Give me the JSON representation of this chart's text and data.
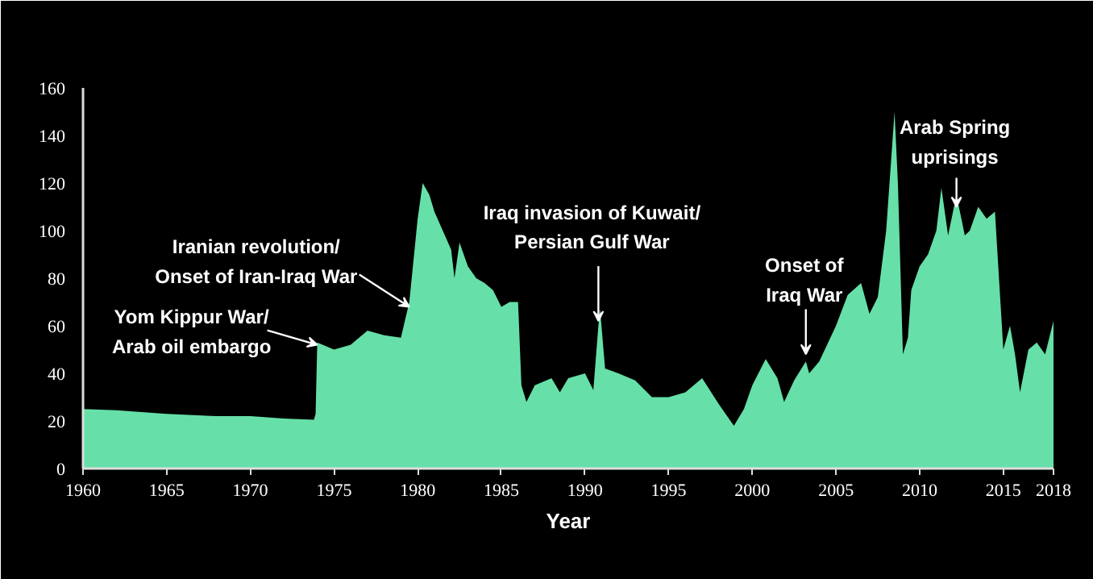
{
  "chart_data": {
    "type": "area",
    "xlabel": "Year",
    "color": "#66e0a8",
    "grid": false,
    "x": [
      1960,
      1962,
      1965,
      1968,
      1970,
      1972,
      1973.8,
      1973.9,
      1974.0,
      1975,
      1976,
      1977,
      1978,
      1979,
      1979.5,
      1980,
      1980.3,
      1980.7,
      1981,
      1981.5,
      1982,
      1982.2,
      1982.5,
      1983,
      1983.5,
      1984,
      1984.5,
      1985,
      1985.5,
      1986,
      1986.2,
      1986.5,
      1987,
      1988,
      1988.5,
      1989,
      1990,
      1990.5,
      1990.8,
      1990.9,
      1991.2,
      1992,
      1993,
      1994,
      1995,
      1996,
      1997,
      1998,
      1998.9,
      1999.5,
      2000,
      2000.8,
      2001.5,
      2001.9,
      2002.5,
      2003.2,
      2003.4,
      2004,
      2005,
      2005.7,
      2006.5,
      2007,
      2007.5,
      2008,
      2008.5,
      2008.7,
      2009,
      2009.3,
      2009.5,
      2010,
      2010.5,
      2011,
      2011.3,
      2011.7,
      2012.2,
      2012.7,
      2013,
      2013.5,
      2014,
      2014.5,
      2015,
      2015.4,
      2015.7,
      2016,
      2016.5,
      2017,
      2017.5,
      2018
    ],
    "values": [
      25,
      24.5,
      23,
      22,
      22,
      21,
      20.5,
      23,
      53,
      50,
      52,
      58,
      56,
      55,
      70,
      105,
      120,
      115,
      108,
      100,
      92,
      80,
      95,
      85,
      80,
      78,
      75,
      68,
      70,
      70,
      35,
      28,
      35,
      38,
      32,
      38,
      40,
      33,
      60,
      67,
      42,
      40,
      37,
      30,
      30,
      32,
      38,
      27,
      18,
      25,
      35,
      46,
      38,
      28,
      37,
      45,
      40,
      45,
      60,
      73,
      78,
      65,
      72,
      100,
      150,
      120,
      48,
      55,
      75,
      85,
      90,
      100,
      118,
      98,
      115,
      98,
      100,
      110,
      105,
      108,
      50,
      60,
      48,
      32,
      50,
      53,
      48,
      62
    ],
    "xlim": [
      1960,
      2018
    ],
    "xticks": [
      1960,
      1965,
      1970,
      1975,
      1980,
      1985,
      1990,
      1995,
      2000,
      2005,
      2010,
      2015,
      2018
    ],
    "ylim": [
      0,
      160
    ],
    "yticks": [
      0,
      20,
      40,
      60,
      80,
      100,
      120,
      140,
      160
    ],
    "annotations": [
      {
        "text": "Yom Kippur War/\nArab oil embargo",
        "x": 1974,
        "y": 52
      },
      {
        "text": "Iranian revolution/\nOnset of Iran-Iraq War",
        "x": 1979.5,
        "y": 68
      },
      {
        "text": "Iraq invasion of Kuwait/\nPersian Gulf War",
        "x": 1990.8,
        "y": 62
      },
      {
        "text": "Onset of\nIraq War",
        "x": 2003.2,
        "y": 48
      },
      {
        "text": "Arab Spring\nuprisings",
        "x": 2012.2,
        "y": 110
      }
    ]
  }
}
